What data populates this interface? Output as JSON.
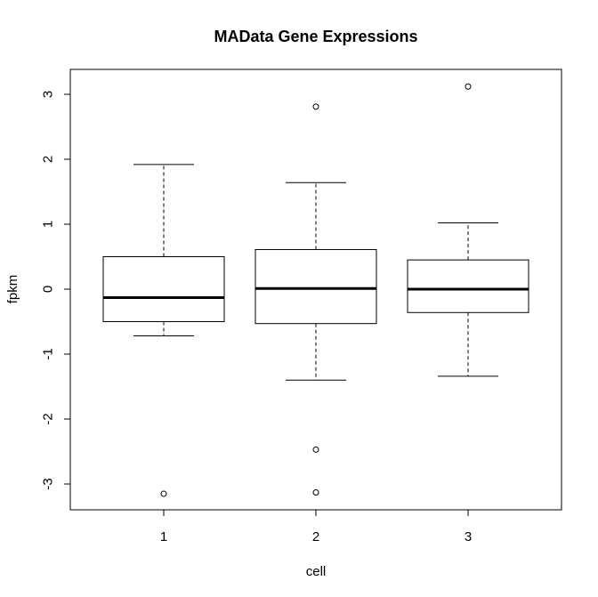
{
  "chart_data": {
    "type": "boxplot",
    "title": "MAData Gene Expressions",
    "xlabel": "cell",
    "ylabel": "fpkm",
    "categories": [
      "1",
      "2",
      "3"
    ],
    "ylim": [
      -3.4,
      3.4
    ],
    "yticks": [
      -3,
      -2,
      -1,
      0,
      1,
      2,
      3
    ],
    "ytick_labels": [
      "-3",
      "-2",
      "-1",
      "0",
      "1",
      "2",
      "3"
    ],
    "grid": false,
    "legend": "none",
    "boxes": [
      {
        "category": "1",
        "whisker_low": -0.72,
        "q1": -0.5,
        "median": -0.13,
        "q3": 0.5,
        "whisker_high": 1.92,
        "outliers": [
          -3.15
        ]
      },
      {
        "category": "2",
        "whisker_low": -1.4,
        "q1": -0.53,
        "median": 0.01,
        "q3": 0.61,
        "whisker_high": 1.64,
        "outliers": [
          2.81,
          -2.47,
          -3.13
        ]
      },
      {
        "category": "3",
        "whisker_low": -1.34,
        "q1": -0.36,
        "median": 0.0,
        "q3": 0.45,
        "whisker_high": 1.02,
        "outliers": [
          3.12
        ]
      }
    ]
  }
}
